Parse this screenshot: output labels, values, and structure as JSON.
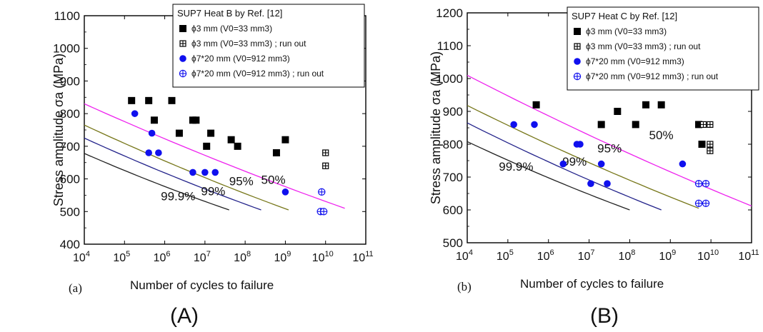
{
  "panels": [
    {
      "caption": "(A)",
      "sublabel": "(a)",
      "chart_data": {
        "type": "scatter",
        "xlabel": "Number of cycles to failure",
        "ylabel": "Stress amplitude σa (MPa)",
        "xscale": "log",
        "xlim": [
          10000,
          100000000000
        ],
        "ylim": [
          400,
          1100
        ],
        "yticks": [
          400,
          500,
          600,
          700,
          800,
          900,
          1000,
          1100
        ],
        "xtick_exponents": [
          4,
          5,
          6,
          7,
          8,
          9,
          10,
          11
        ],
        "grid": false,
        "legend": {
          "title": "SUP7 Heat B by Ref. [12]",
          "placement": "top-right",
          "entries": [
            {
              "marker": "filled-square",
              "color": "#000000",
              "text": "ϕ3 mm (V0=33 mm3)"
            },
            {
              "marker": "crossed-square",
              "color": "#000000",
              "text": "ϕ3 mm (V0=33 mm3) ; run out"
            },
            {
              "marker": "filled-circle",
              "color": "#1010ee",
              "text": "ϕ7*20 mm (V0=912 mm3)"
            },
            {
              "marker": "crossed-circle",
              "color": "#1010ee",
              "text": "ϕ7*20 mm (V0=912 mm3) ; run out"
            }
          ]
        },
        "series": [
          {
            "marker": "filled-square",
            "color": "#000000",
            "points": [
              [
                150000,
                840
              ],
              [
                400000,
                840
              ],
              [
                550000,
                780
              ],
              [
                1500000,
                840
              ],
              [
                2300000,
                740
              ],
              [
                5000000,
                780
              ],
              [
                6000000,
                780
              ],
              [
                11000000,
                700
              ],
              [
                14000000,
                740
              ],
              [
                45000000,
                720
              ],
              [
                65000000,
                700
              ],
              [
                600000000,
                680
              ],
              [
                1000000000,
                720
              ]
            ]
          },
          {
            "marker": "crossed-square",
            "color": "#000000",
            "points": [
              [
                10000000000,
                680
              ],
              [
                10000000000,
                640
              ]
            ]
          },
          {
            "marker": "filled-circle",
            "color": "#1010ee",
            "points": [
              [
                180000,
                800
              ],
              [
                400000,
                680
              ],
              [
                480000,
                740
              ],
              [
                700000,
                680
              ],
              [
                5000000,
                620
              ],
              [
                10000000,
                620
              ],
              [
                18000000,
                620
              ],
              [
                1000000000,
                560
              ]
            ]
          },
          {
            "marker": "crossed-circle",
            "color": "#1010ee",
            "points": [
              [
                8000000000,
                560
              ],
              [
                7500000000,
                500
              ],
              [
                9000000000,
                500
              ]
            ]
          }
        ],
        "curves": [
          {
            "label": "50%",
            "color": "#ee22ee",
            "points": [
              [
                10000,
                830
              ],
              [
                30000000000,
                510
              ]
            ]
          },
          {
            "label": "95%",
            "color": "#77771a",
            "points": [
              [
                10000,
                765
              ],
              [
                1200000000,
                505
              ]
            ]
          },
          {
            "label": "99%",
            "color": "#22228a",
            "points": [
              [
                10000,
                725
              ],
              [
                250000000,
                505
              ]
            ]
          },
          {
            "label": "99.9%",
            "color": "#222222",
            "points": [
              [
                10000,
                678
              ],
              [
                40000000,
                505
              ]
            ]
          }
        ],
        "curve_labels": [
          {
            "text": "50%",
            "x": 250000000,
            "y": 585
          },
          {
            "text": "95%",
            "x": 40000000,
            "y": 580
          },
          {
            "text": "99%",
            "x": 8000000,
            "y": 550
          },
          {
            "text": "99.9%",
            "x": 800000,
            "y": 535
          }
        ]
      }
    },
    {
      "caption": "(B)",
      "sublabel": "(b)",
      "chart_data": {
        "type": "scatter",
        "xlabel": "Number of cycles to failure",
        "ylabel": "Stress amplitude σa (MPa)",
        "xscale": "log",
        "xlim": [
          10000,
          100000000000
        ],
        "ylim": [
          500,
          1200
        ],
        "yticks": [
          500,
          600,
          700,
          800,
          900,
          1000,
          1100,
          1200
        ],
        "xtick_exponents": [
          4,
          5,
          6,
          7,
          8,
          9,
          10,
          11
        ],
        "grid": false,
        "legend": {
          "title": "SUP7 Heat C by Ref. [12]",
          "placement": "top-right",
          "entries": [
            {
              "marker": "filled-square",
              "color": "#000000",
              "text": "ϕ3 mm (V0=33 mm3)"
            },
            {
              "marker": "crossed-square",
              "color": "#000000",
              "text": "ϕ3 mm (V0=33 mm3) ; run out"
            },
            {
              "marker": "filled-circle",
              "color": "#1010ee",
              "text": "ϕ7*20 mm (V0=912 mm3)"
            },
            {
              "marker": "crossed-circle",
              "color": "#1010ee",
              "text": "ϕ7*20 mm (V0=912 mm3) ; run out"
            }
          ]
        },
        "series": [
          {
            "marker": "filled-square",
            "color": "#000000",
            "points": [
              [
                500000,
                920
              ],
              [
                20000000,
                860
              ],
              [
                50000000,
                900
              ],
              [
                140000000,
                860
              ],
              [
                250000000,
                920
              ],
              [
                600000000,
                920
              ],
              [
                5000000000,
                860
              ],
              [
                6000000000,
                800
              ]
            ]
          },
          {
            "marker": "crossed-square",
            "color": "#000000",
            "points": [
              [
                6500000000,
                860
              ],
              [
                9500000000,
                860
              ],
              [
                9500000000,
                800
              ],
              [
                9500000000,
                780
              ]
            ]
          },
          {
            "marker": "filled-circle",
            "color": "#1010ee",
            "points": [
              [
                140000,
                860
              ],
              [
                450000,
                860
              ],
              [
                2300000,
                740
              ],
              [
                5000000,
                800
              ],
              [
                6000000,
                800
              ],
              [
                11000000,
                680
              ],
              [
                20000000,
                740
              ],
              [
                28000000,
                680
              ],
              [
                2000000000,
                740
              ]
            ]
          },
          {
            "marker": "crossed-circle",
            "color": "#1010ee",
            "points": [
              [
                5000000000,
                680
              ],
              [
                7500000000,
                680
              ],
              [
                5000000000,
                620
              ],
              [
                7500000000,
                620
              ]
            ]
          }
        ],
        "curves": [
          {
            "label": "50%",
            "color": "#ee22ee",
            "points": [
              [
                10000,
                1010
              ],
              [
                100000000000,
                612
              ]
            ]
          },
          {
            "label": "95%",
            "color": "#77771a",
            "points": [
              [
                10000,
                918
              ],
              [
                5000000000,
                605
              ]
            ]
          },
          {
            "label": "99%",
            "color": "#22228a",
            "points": [
              [
                10000,
                865
              ],
              [
                600000000,
                600
              ]
            ]
          },
          {
            "label": "99.9%",
            "color": "#222222",
            "points": [
              [
                10000,
                808
              ],
              [
                100000000,
                600
              ]
            ]
          }
        ],
        "curve_labels": [
          {
            "text": "50%",
            "x": 300000000,
            "y": 815
          },
          {
            "text": "95%",
            "x": 16000000,
            "y": 775
          },
          {
            "text": "99%",
            "x": 2200000,
            "y": 735
          },
          {
            "text": "99.9%",
            "x": 60000,
            "y": 720
          }
        ]
      }
    }
  ]
}
